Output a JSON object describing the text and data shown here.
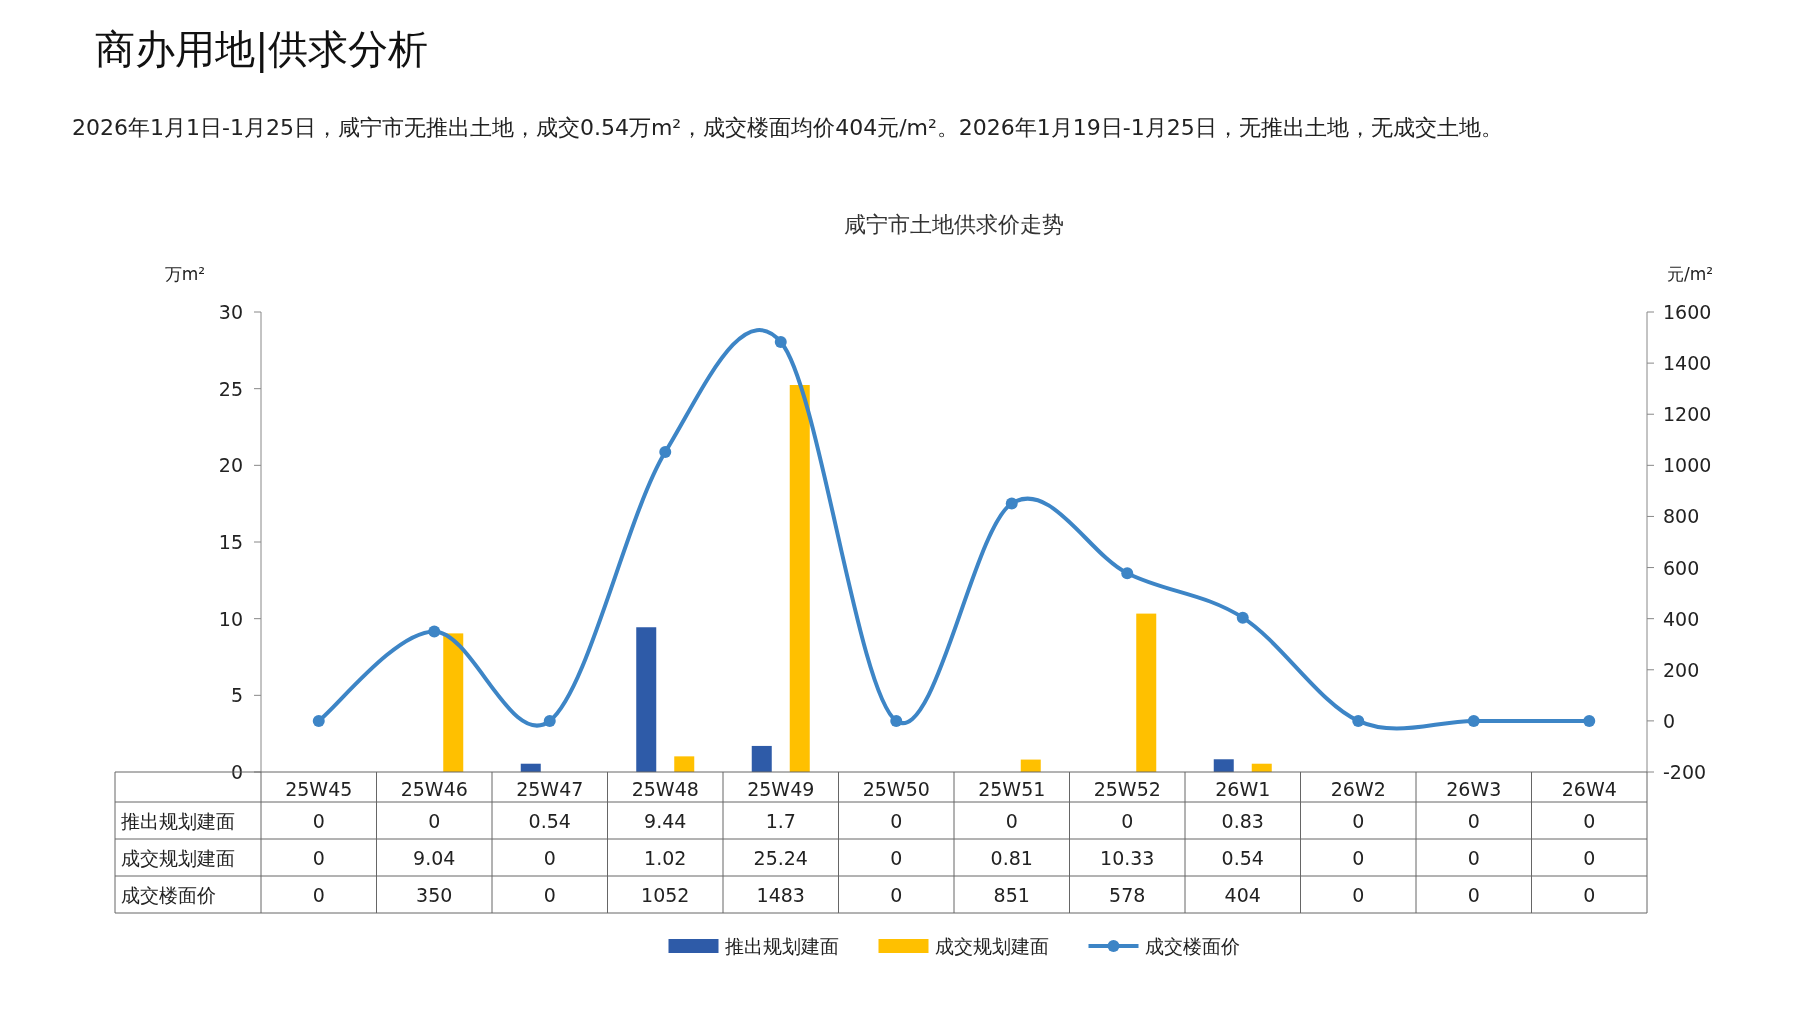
{
  "chart_data": {
    "type": "bar",
    "title": "咸宁市土地供求价走势",
    "annotations": [
      "商办用地|供求分析",
      "2026年1月1日-1月25日，咸宁市无推出土地，成交0.54万m²，成交楼面均价404元/m²。2026年1月19日-1月25日，无推出土地，无成交土地。"
    ],
    "ylabel": "万m²",
    "y2label": "元/m²",
    "categories": [
      "25W45",
      "25W46",
      "25W47",
      "25W48",
      "25W49",
      "25W50",
      "25W51",
      "25W52",
      "26W1",
      "26W2",
      "26W3",
      "26W4"
    ],
    "series": [
      {
        "name": "推出规划建面",
        "color": "#2e5ba8",
        "values": [
          0,
          0,
          0.54,
          9.44,
          1.7,
          0,
          0,
          0,
          0.83,
          0,
          0,
          0
        ]
      },
      {
        "name": "成交规划建面",
        "color": "#ffc000",
        "values": [
          0,
          9.04,
          0,
          1.02,
          25.24,
          0,
          0.81,
          10.33,
          0.54,
          0,
          0,
          0
        ]
      },
      {
        "name": "成交楼面价",
        "type": "line",
        "axis": "y2",
        "color": "#3d85c6",
        "marker": "circle",
        "line_style": "solid",
        "values": [
          0,
          350,
          0,
          1052,
          1483,
          0,
          851,
          578,
          404,
          0,
          0,
          0
        ]
      }
    ],
    "ylim": [
      0,
      30
    ],
    "yticks": [
      0,
      5,
      10,
      15,
      20,
      25,
      30
    ],
    "y2lim": [
      -200,
      1600
    ],
    "y2ticks": [
      -200,
      0,
      200,
      400,
      600,
      800,
      1000,
      1200,
      1400,
      1600
    ],
    "data_labels": true,
    "legend": "bottom",
    "grid": false
  }
}
